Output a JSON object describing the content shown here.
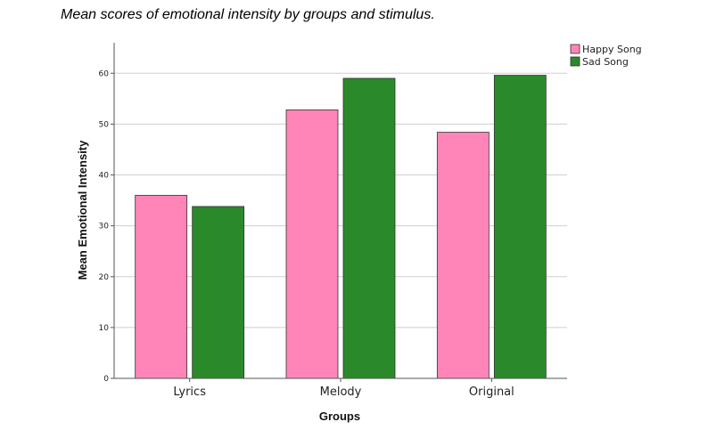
{
  "caption": "Mean scores of emotional intensity by groups and stimulus.",
  "chart_data": {
    "type": "bar",
    "categories": [
      "Lyrics",
      "Melody",
      "Original"
    ],
    "series": [
      {
        "name": "Happy Song",
        "color": "#ff85b8",
        "values": [
          36.0,
          52.8,
          48.4
        ]
      },
      {
        "name": "Sad Song",
        "color": "#2a8a2a",
        "values": [
          33.8,
          59.0,
          59.6
        ]
      }
    ],
    "xlabel": "Groups",
    "ylabel": "Mean Emotional Intensity",
    "ylim": [
      0,
      66
    ],
    "yticks": [
      0,
      10,
      20,
      30,
      40,
      50,
      60
    ],
    "grid": true,
    "legend_position": "top-right"
  }
}
